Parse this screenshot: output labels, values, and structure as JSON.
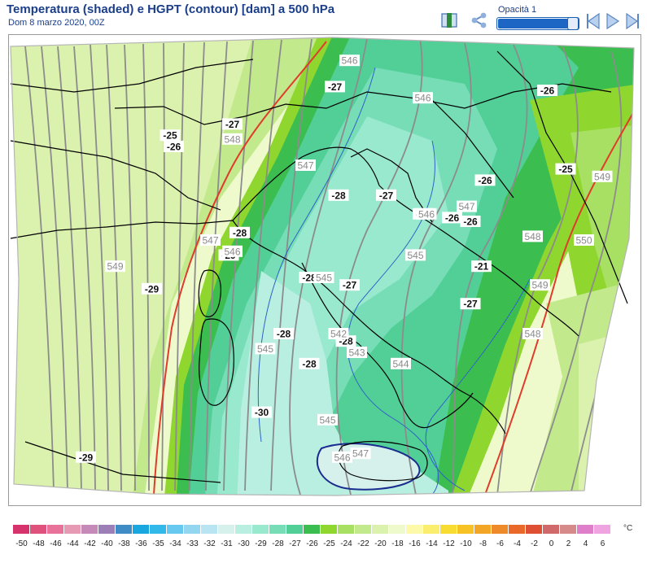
{
  "header": {
    "title": "Temperatura (shaded) e HGPT (contour) [dam] a 500 hPa",
    "subtitle": "Dom 8 marzo 2020, 00Z"
  },
  "toolbar": {
    "opacity_label": "Opacità 1",
    "opacity_value": 1,
    "icons": [
      "book-icon",
      "share-icon",
      "step-back-icon",
      "play-icon",
      "step-forward-icon"
    ]
  },
  "map": {
    "temperature_labels": [
      {
        "text": "-27",
        "lon": 12.4,
        "lat": 47.2
      },
      {
        "text": "-26",
        "lon": 18.2,
        "lat": 47.1
      },
      {
        "text": "-27",
        "lon": 9.6,
        "lat": 46.2
      },
      {
        "text": "-25",
        "lon": 7.9,
        "lat": 45.9
      },
      {
        "text": "-26",
        "lon": 8.0,
        "lat": 45.6
      },
      {
        "text": "-25",
        "lon": 18.7,
        "lat": 45.0
      },
      {
        "text": "-26",
        "lon": 16.5,
        "lat": 44.7
      },
      {
        "text": "-28",
        "lon": 12.5,
        "lat": 44.3
      },
      {
        "text": "-27",
        "lon": 13.8,
        "lat": 44.3
      },
      {
        "text": "-26",
        "lon": 14.8,
        "lat": 43.8
      },
      {
        "text": "-26",
        "lon": 15.6,
        "lat": 43.7
      },
      {
        "text": "-26",
        "lon": 16.1,
        "lat": 43.6
      },
      {
        "text": "-28",
        "lon": 9.8,
        "lat": 43.3
      },
      {
        "text": "-29",
        "lon": 9.5,
        "lat": 42.7
      },
      {
        "text": "-21",
        "lon": 16.4,
        "lat": 42.4
      },
      {
        "text": "-28",
        "lon": 11.7,
        "lat": 42.1
      },
      {
        "text": "-27",
        "lon": 12.8,
        "lat": 41.9
      },
      {
        "text": "-29",
        "lon": 7.4,
        "lat": 41.8
      },
      {
        "text": "-27",
        "lon": 16.1,
        "lat": 41.4
      },
      {
        "text": "-28",
        "lon": 11.0,
        "lat": 40.6
      },
      {
        "text": "-28",
        "lon": 12.7,
        "lat": 40.4
      },
      {
        "text": "-28",
        "lon": 11.7,
        "lat": 39.8
      },
      {
        "text": "-30",
        "lon": 10.4,
        "lat": 38.5
      },
      {
        "text": "-29",
        "lon": 5.6,
        "lat": 37.3
      }
    ],
    "height_labels": [
      {
        "text": "546",
        "lon": 12.8,
        "lat": 47.9
      },
      {
        "text": "546",
        "lon": 14.8,
        "lat": 46.9
      },
      {
        "text": "548",
        "lon": 9.6,
        "lat": 45.8
      },
      {
        "text": "547",
        "lon": 11.6,
        "lat": 45.1
      },
      {
        "text": "549",
        "lon": 19.7,
        "lat": 44.8
      },
      {
        "text": "547",
        "lon": 16.0,
        "lat": 44.0
      },
      {
        "text": "546",
        "lon": 14.9,
        "lat": 43.8
      },
      {
        "text": "548",
        "lon": 17.8,
        "lat": 43.2
      },
      {
        "text": "550",
        "lon": 19.2,
        "lat": 43.1
      },
      {
        "text": "547",
        "lon": 9.0,
        "lat": 43.1
      },
      {
        "text": "546",
        "lon": 9.6,
        "lat": 42.8
      },
      {
        "text": "545",
        "lon": 14.6,
        "lat": 42.7
      },
      {
        "text": "549",
        "lon": 6.4,
        "lat": 42.4
      },
      {
        "text": "545",
        "lon": 12.1,
        "lat": 42.1
      },
      {
        "text": "549",
        "lon": 18.0,
        "lat": 41.9
      },
      {
        "text": "548",
        "lon": 17.8,
        "lat": 40.6
      },
      {
        "text": "542",
        "lon": 12.5,
        "lat": 40.6
      },
      {
        "text": "543",
        "lon": 13.0,
        "lat": 40.1
      },
      {
        "text": "545",
        "lon": 10.5,
        "lat": 40.2
      },
      {
        "text": "544",
        "lon": 14.2,
        "lat": 39.8
      },
      {
        "text": "545",
        "lon": 12.2,
        "lat": 38.3
      },
      {
        "text": "546",
        "lon": 12.6,
        "lat": 37.3
      },
      {
        "text": "547",
        "lon": 13.1,
        "lat": 37.4
      }
    ]
  },
  "legend": {
    "unit": "°C",
    "items": [
      {
        "label": "-50",
        "color": "#d6336c"
      },
      {
        "label": "-48",
        "color": "#e0527e"
      },
      {
        "label": "-46",
        "color": "#e8729a"
      },
      {
        "label": "-44",
        "color": "#e79ab4"
      },
      {
        "label": "-42",
        "color": "#c68ab8"
      },
      {
        "label": "-40",
        "color": "#9c7fb6"
      },
      {
        "label": "-38",
        "color": "#3f8cc6"
      },
      {
        "label": "-36",
        "color": "#1aa6df"
      },
      {
        "label": "-35",
        "color": "#33b8ea"
      },
      {
        "label": "-34",
        "color": "#67c9ef"
      },
      {
        "label": "-33",
        "color": "#93d6f0"
      },
      {
        "label": "-32",
        "color": "#b9e4f1"
      },
      {
        "label": "-31",
        "color": "#d6f0ec"
      },
      {
        "label": "-30",
        "color": "#b8efe0"
      },
      {
        "label": "-29",
        "color": "#99e9cf"
      },
      {
        "label": "-28",
        "color": "#76ddb7"
      },
      {
        "label": "-27",
        "color": "#52cf97"
      },
      {
        "label": "-26",
        "color": "#3cbd4f"
      },
      {
        "label": "-25",
        "color": "#8fd62e"
      },
      {
        "label": "-24",
        "color": "#a8e063"
      },
      {
        "label": "-22",
        "color": "#c2e98c"
      },
      {
        "label": "-20",
        "color": "#dbf1ae"
      },
      {
        "label": "-18",
        "color": "#effacc"
      },
      {
        "label": "-16",
        "color": "#fcf9a8"
      },
      {
        "label": "-14",
        "color": "#fbee6f"
      },
      {
        "label": "-12",
        "color": "#f8dc31"
      },
      {
        "label": "-10",
        "color": "#f6c224"
      },
      {
        "label": "-8",
        "color": "#f3a626"
      },
      {
        "label": "-6",
        "color": "#ef8a2a"
      },
      {
        "label": "-4",
        "color": "#e9692b"
      },
      {
        "label": "-2",
        "color": "#df4f34"
      },
      {
        "label": "0",
        "color": "#d06a6a"
      },
      {
        "label": "2",
        "color": "#d68a8a"
      },
      {
        "label": "4",
        "color": "#e07fc9"
      },
      {
        "label": "6",
        "color": "#efa3e1"
      }
    ]
  }
}
